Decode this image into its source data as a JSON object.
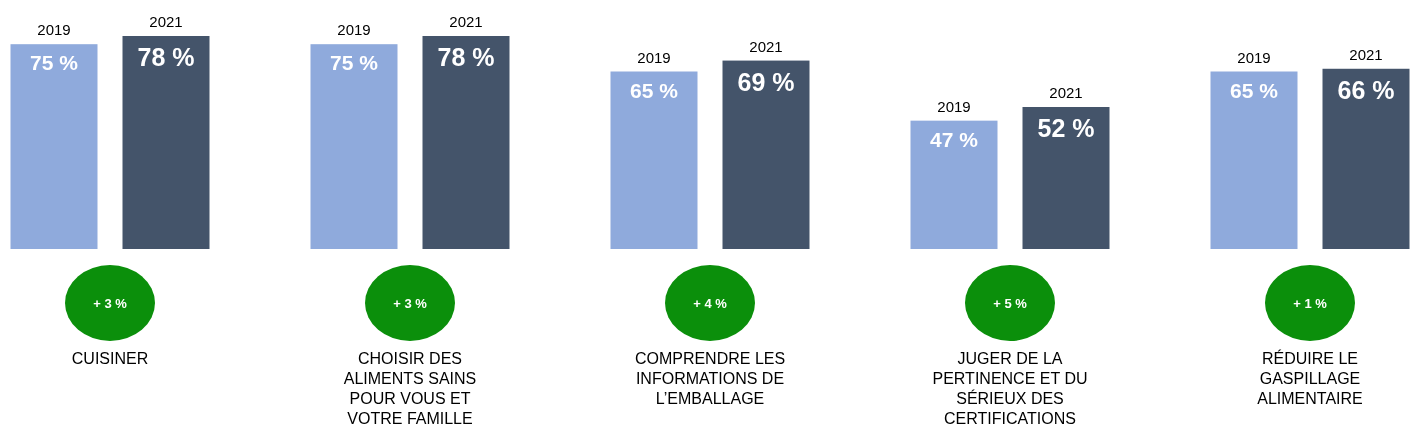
{
  "chart_data": {
    "type": "bar",
    "categories": [
      "CUISINER",
      "CHOISIR DES ALIMENTS SAINS POUR VOUS ET VOTRE FAMILLE",
      "COMPRENDRE LES INFORMATIONS DE L’EMBALLAGE",
      "JUGER DE LA PERTINENCE ET DU SÉRIEUX DES CERTIFICATIONS",
      "RÉDUIRE LE GASPILLAGE ALIMENTAIRE"
    ],
    "series": [
      {
        "name": "2019",
        "color": "#8faadc",
        "values": [
          75,
          75,
          65,
          47,
          65
        ],
        "value_labels": [
          "75 %",
          "75 %",
          "65 %",
          "47 %",
          "65 %"
        ]
      },
      {
        "name": "2021",
        "color": "#44546a",
        "values": [
          78,
          78,
          69,
          52,
          66
        ],
        "value_labels": [
          "78 %",
          "78 %",
          "69 %",
          "52 %",
          "66 %"
        ]
      }
    ],
    "annotations": [
      "+ 3 %",
      "+ 3 %",
      "+ 4 %",
      "+ 5 %",
      "+ 1 %"
    ]
  }
}
